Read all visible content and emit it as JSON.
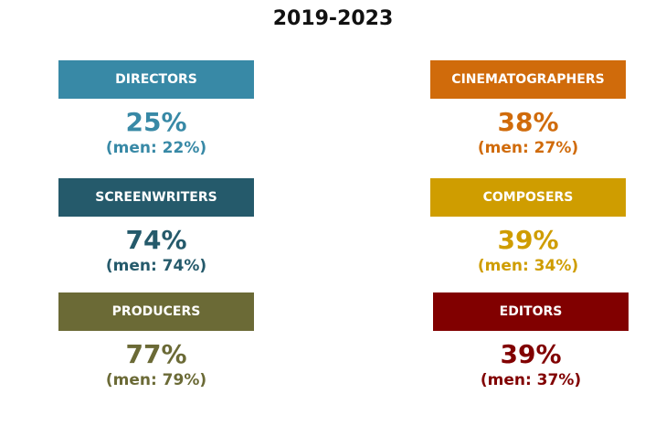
{
  "title": "2019-2023",
  "roles": [
    {
      "label": "DIRECTORS",
      "value": "25%",
      "men": "(men: 22%)",
      "color": "#3889a6"
    },
    {
      "label": "CINEMATOGRAPHERS",
      "value": "38%",
      "men": "(men: 27%)",
      "color": "#d06b0b"
    },
    {
      "label": "SCREENWRITERS",
      "value": "74%",
      "men": "(men: 74%)",
      "color": "#255a6b"
    },
    {
      "label": "COMPOSERS",
      "value": "39%",
      "men": "(men: 34%)",
      "color": "#cf9d00"
    },
    {
      "label": "PRODUCERS",
      "value": "77%",
      "men": "(men: 79%)",
      "color": "#6b6a36"
    },
    {
      "label": "EDITORS",
      "value": "39%",
      "men": "(men: 37%)",
      "color": "#810000"
    }
  ]
}
